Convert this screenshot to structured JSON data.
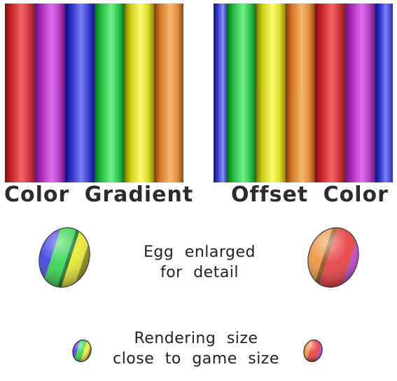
{
  "captions": {
    "color_gradient": "Color  Gradient",
    "offset_color": "Offset  Color",
    "egg_line1": "Egg  enlarged",
    "egg_line2": "for  detail",
    "render_line1": "Rendering  size",
    "render_line2": "close  to  game  size"
  },
  "colors": {
    "red": "#e8383c",
    "purple": "#c23ad0",
    "blue": "#3a3fe0",
    "green": "#2ed24c",
    "yellow": "#e8e82c",
    "orange": "#ec9038"
  },
  "icons": [
    "gradient-egg-icon",
    "offset-egg-icon"
  ]
}
